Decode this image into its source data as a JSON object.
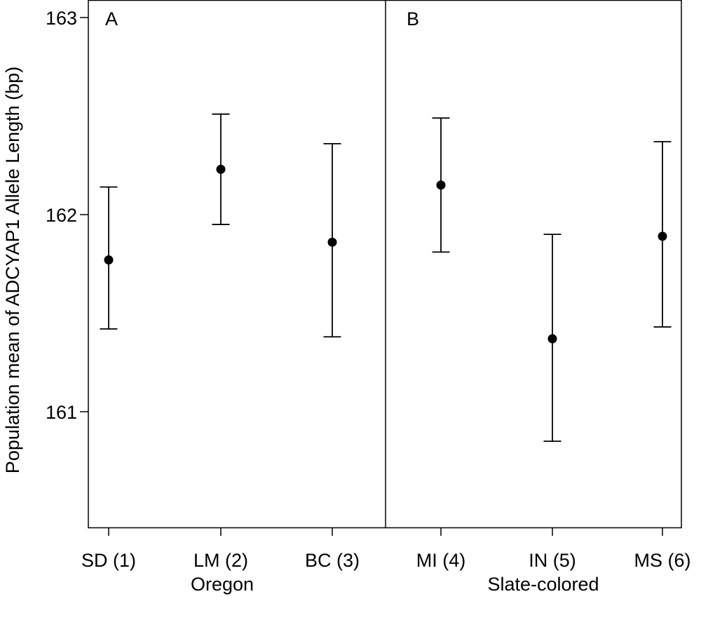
{
  "chart_data": {
    "type": "scatter",
    "ylabel": "Population mean of ADCYAP1 Allele Length (bp)",
    "xlabel": "",
    "ylim": [
      160.4,
      163.05
    ],
    "yticks": [
      161,
      162,
      163
    ],
    "grid": false,
    "panels": [
      "A",
      "B"
    ],
    "groups": [
      {
        "label": "Oregon",
        "panel": "A"
      },
      {
        "label": "Slate-colored",
        "panel": "B"
      }
    ],
    "categories": [
      "SD (1)",
      "LM (2)",
      "BC (3)",
      "MI (4)",
      "IN (5)",
      "MS (6)"
    ],
    "points": [
      {
        "category": "SD (1)",
        "group": "Oregon",
        "mean": 161.77,
        "lower": 161.42,
        "upper": 162.14
      },
      {
        "category": "LM (2)",
        "group": "Oregon",
        "mean": 162.23,
        "lower": 161.95,
        "upper": 162.51
      },
      {
        "category": "BC (3)",
        "group": "Oregon",
        "mean": 161.86,
        "lower": 161.38,
        "upper": 162.36
      },
      {
        "category": "MI (4)",
        "group": "Slate-colored",
        "mean": 162.15,
        "lower": 161.81,
        "upper": 162.49
      },
      {
        "category": "IN (5)",
        "group": "Slate-colored",
        "mean": 161.37,
        "lower": 160.85,
        "upper": 161.9
      },
      {
        "category": "MS (6)",
        "group": "Slate-colored",
        "mean": 161.89,
        "lower": 161.43,
        "upper": 162.37
      }
    ]
  }
}
